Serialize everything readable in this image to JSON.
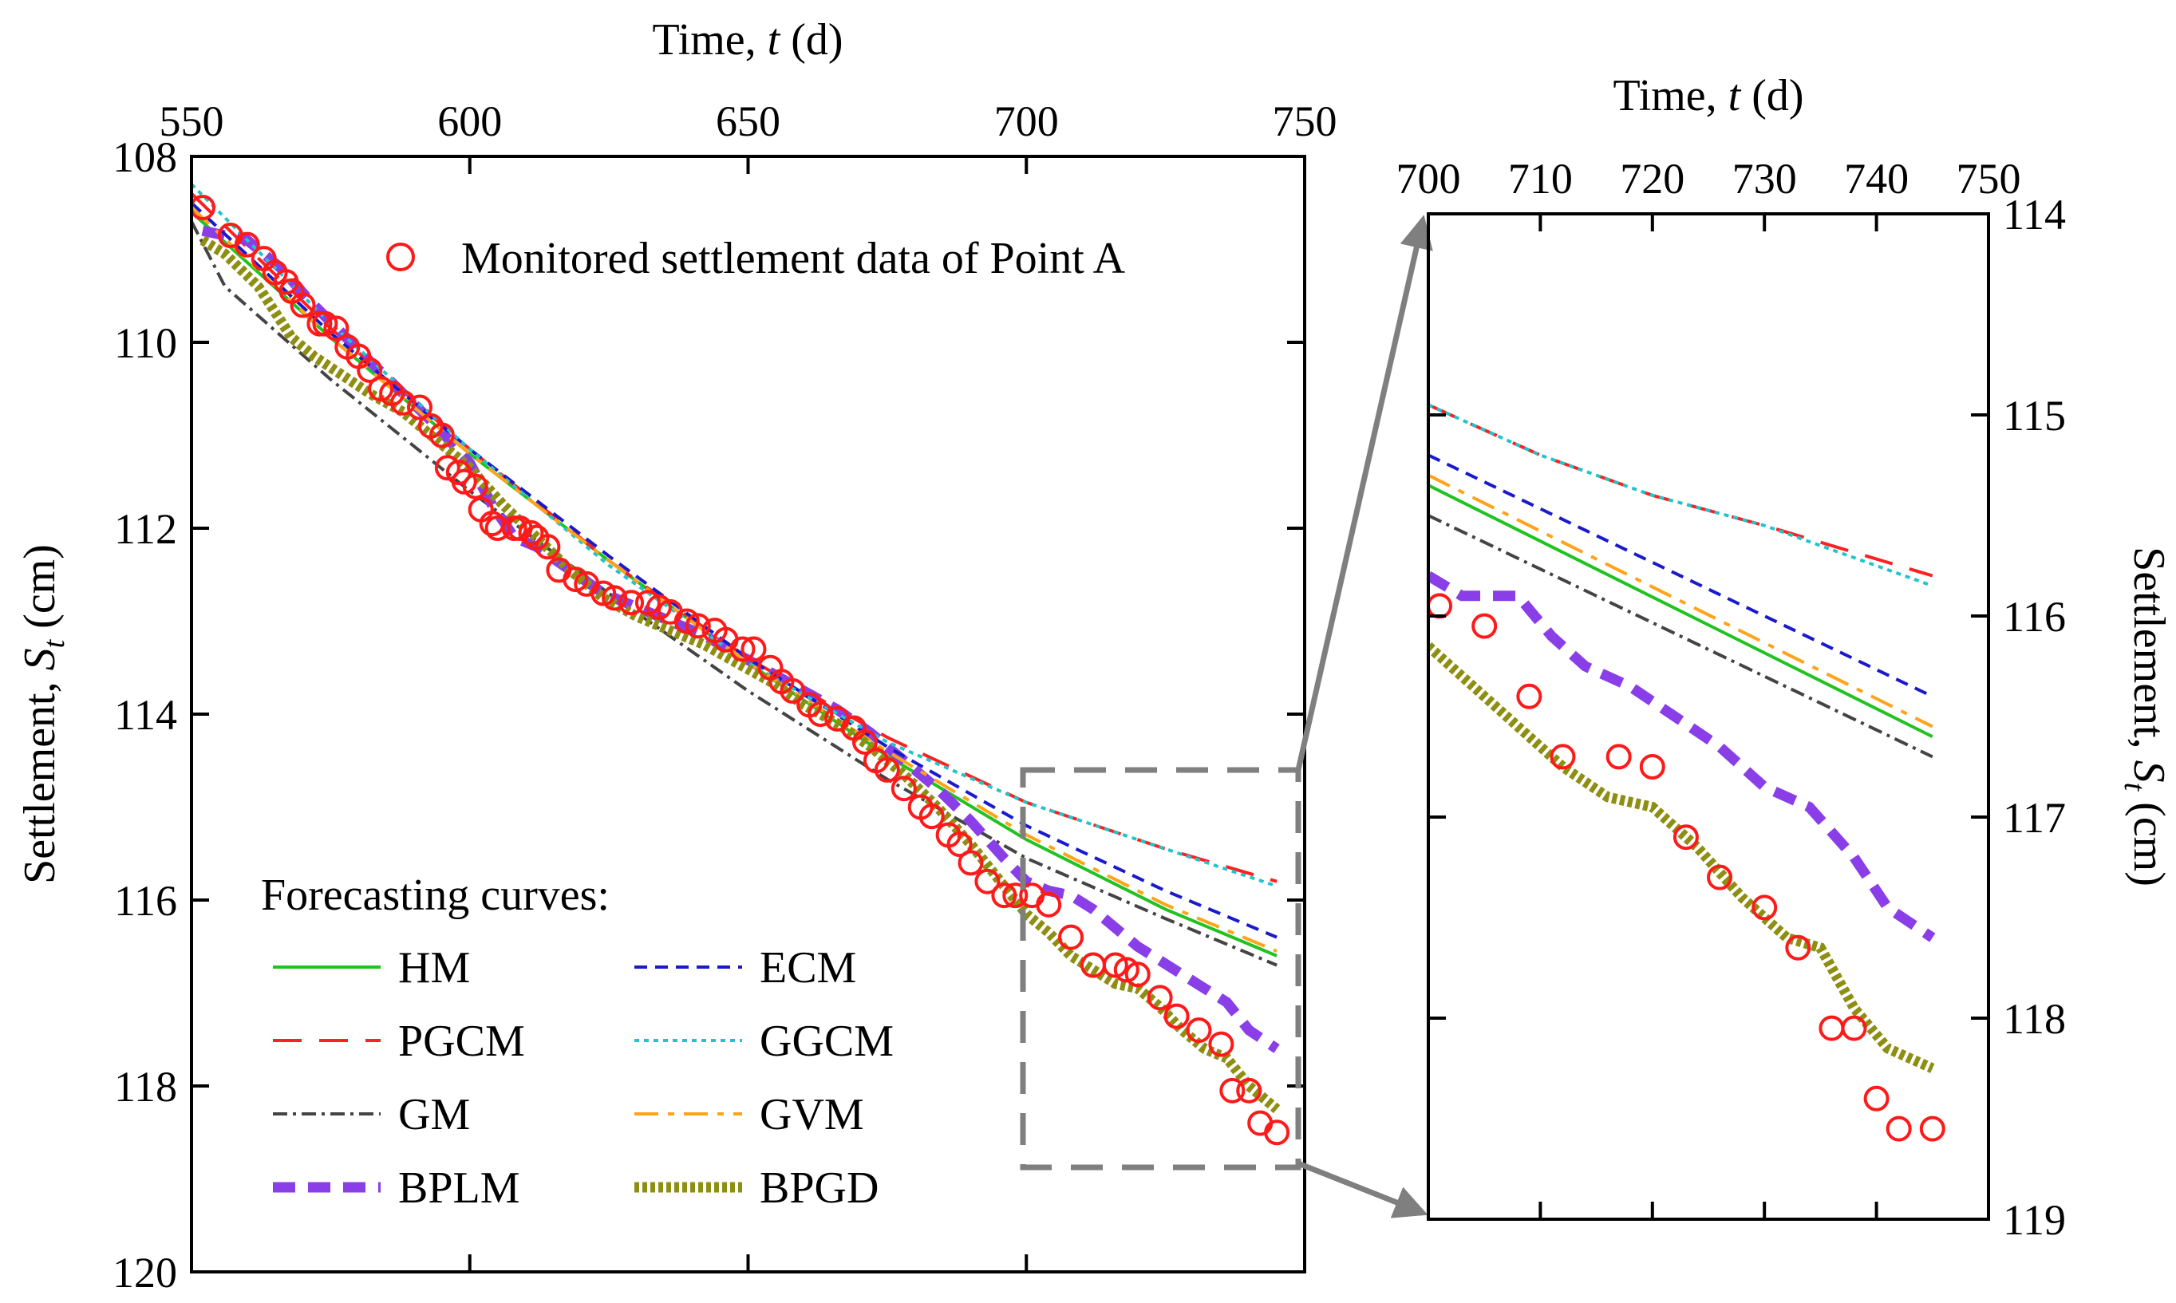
{
  "colors": {
    "observed": "#ff1a1a",
    "HM": "#22c222",
    "PGCM": "#ff2020",
    "GM": "#444444",
    "BPLM": "#8a3ee8",
    "ECM": "#1a1acc",
    "GGCM": "#22c4cc",
    "GVM": "#ffa319",
    "BPGD": "#8e8e12",
    "zoom_box": "#7f7f7f"
  },
  "chart_data": [
    {
      "type": "line",
      "panel": "main",
      "xlabel_main": "Time, ",
      "xlabel_var": "t",
      "xlabel_unit": " (d)",
      "ylabel_main": "Settlement, ",
      "ylabel_var": "S",
      "ylabel_sub": "t",
      "ylabel_unit": " (cm)",
      "xlim": [
        550,
        750
      ],
      "ylim": [
        108,
        120
      ],
      "y_inverted": true,
      "xticks": [
        550,
        600,
        650,
        700,
        750
      ],
      "yticks": [
        108,
        110,
        112,
        114,
        116,
        118,
        120
      ],
      "observed_legend": "Monitored settlement data of Point A",
      "forecast_title": "Forecasting curves:",
      "observed": {
        "name": "Monitored settlement data of Point A",
        "x": [
          552,
          557,
          560,
          563,
          565,
          567,
          568,
          570,
          573,
          574,
          576,
          578,
          580,
          582,
          584,
          586,
          588,
          591,
          593,
          595,
          596,
          598,
          599,
          601,
          602,
          604,
          605,
          608,
          609,
          611,
          612,
          614,
          616,
          619,
          621,
          624,
          626,
          629,
          632,
          634,
          636,
          639,
          641,
          644,
          646,
          649,
          651,
          654,
          656,
          658,
          661,
          663,
          666,
          669,
          671,
          673,
          675,
          678,
          681,
          683,
          686,
          688,
          690,
          693,
          696,
          698,
          701,
          704,
          708,
          712,
          716,
          718,
          720,
          724,
          727,
          731,
          735,
          737,
          740,
          742,
          745
        ],
        "y": [
          108.55,
          108.85,
          108.95,
          109.1,
          109.25,
          109.35,
          109.45,
          109.6,
          109.8,
          109.8,
          109.85,
          110.05,
          110.15,
          110.3,
          110.5,
          110.55,
          110.65,
          110.7,
          110.9,
          111.0,
          111.35,
          111.4,
          111.5,
          111.55,
          111.8,
          111.95,
          112.0,
          112.0,
          112.0,
          112.05,
          112.1,
          112.2,
          112.45,
          112.55,
          112.6,
          112.7,
          112.75,
          112.8,
          112.8,
          112.85,
          112.9,
          113.0,
          113.05,
          113.1,
          113.2,
          113.3,
          113.3,
          113.5,
          113.65,
          113.75,
          113.9,
          114.0,
          114.05,
          114.15,
          114.3,
          114.5,
          114.6,
          114.8,
          115.0,
          115.1,
          115.3,
          115.4,
          115.6,
          115.8,
          115.95,
          115.95,
          115.95,
          116.05,
          116.4,
          116.7,
          116.7,
          116.75,
          116.8,
          117.05,
          117.25,
          117.4,
          117.55,
          118.05,
          118.05,
          118.4,
          118.5
        ]
      },
      "series": [
        {
          "name": "HM",
          "x": [
            550,
            575,
            600,
            625,
            650,
            675,
            700,
            725,
            745
          ],
          "y": [
            108.6,
            109.95,
            111.2,
            112.35,
            113.45,
            114.45,
            115.35,
            116.1,
            116.6
          ]
        },
        {
          "name": "PGCM",
          "x": [
            550,
            575,
            600,
            625,
            650,
            675,
            700,
            725,
            745
          ],
          "y": [
            108.4,
            109.85,
            111.15,
            112.35,
            113.4,
            114.25,
            114.95,
            115.45,
            115.8
          ]
        },
        {
          "name": "GM",
          "x": [
            550,
            556,
            575,
            600,
            625,
            650,
            675,
            700,
            725,
            745
          ],
          "y": [
            108.7,
            109.4,
            110.4,
            111.6,
            112.7,
            113.75,
            114.7,
            115.55,
            116.2,
            116.7
          ]
        },
        {
          "name": "BPLM",
          "x": [
            552,
            560,
            566,
            572,
            577,
            582,
            588,
            594,
            600,
            604,
            608,
            612,
            618,
            624,
            630,
            636,
            642,
            648,
            654,
            660,
            666,
            672,
            678,
            684,
            690,
            696,
            700,
            704,
            708,
            712,
            716,
            720,
            724,
            728,
            732,
            736,
            740,
            745
          ],
          "y": [
            108.8,
            108.9,
            109.2,
            109.6,
            109.9,
            110.2,
            110.55,
            110.9,
            111.3,
            111.75,
            112.1,
            112.2,
            112.45,
            112.7,
            112.85,
            113.0,
            113.15,
            113.35,
            113.55,
            113.75,
            113.95,
            114.2,
            114.5,
            114.8,
            115.15,
            115.55,
            115.8,
            115.9,
            115.95,
            116.1,
            116.3,
            116.5,
            116.65,
            116.8,
            116.95,
            117.1,
            117.4,
            117.6
          ]
        },
        {
          "name": "ECM",
          "x": [
            550,
            575,
            600,
            625,
            650,
            675,
            700,
            725,
            745
          ],
          "y": [
            108.5,
            109.9,
            111.15,
            112.3,
            113.4,
            114.35,
            115.2,
            115.9,
            116.4
          ]
        },
        {
          "name": "GGCM",
          "x": [
            550,
            575,
            600,
            625,
            650,
            675,
            700,
            725,
            745
          ],
          "y": [
            108.3,
            109.8,
            111.15,
            112.4,
            113.45,
            114.3,
            114.95,
            115.45,
            115.85
          ]
        },
        {
          "name": "GVM",
          "x": [
            550,
            575,
            600,
            625,
            650,
            675,
            700,
            725,
            745
          ],
          "y": [
            108.55,
            109.95,
            111.2,
            112.35,
            113.45,
            114.4,
            115.3,
            116.05,
            116.55
          ]
        },
        {
          "name": "BPGD",
          "x": [
            552,
            556,
            562,
            568,
            572,
            577,
            582,
            588,
            594,
            600,
            606,
            612,
            618,
            624,
            630,
            636,
            642,
            648,
            654,
            660,
            666,
            672,
            678,
            684,
            690,
            696,
            700,
            704,
            708,
            712,
            716,
            720,
            724,
            728,
            732,
            736,
            740,
            745
          ],
          "y": [
            108.9,
            109.05,
            109.4,
            109.95,
            110.15,
            110.35,
            110.55,
            110.75,
            111.05,
            111.35,
            111.75,
            112.1,
            112.45,
            112.75,
            112.95,
            113.1,
            113.25,
            113.45,
            113.65,
            113.9,
            114.1,
            114.35,
            114.65,
            115.0,
            115.4,
            115.85,
            116.15,
            116.35,
            116.6,
            116.75,
            116.9,
            116.95,
            117.15,
            117.4,
            117.6,
            117.7,
            118.0,
            118.25
          ]
        }
      ]
    },
    {
      "type": "line",
      "panel": "zoom",
      "xlabel_main": "Time, ",
      "xlabel_var": "t",
      "xlabel_unit": " (d)",
      "ylabel_main": "Settlement, ",
      "ylabel_var": "S",
      "ylabel_sub": "t",
      "ylabel_unit": " (cm)",
      "xlim": [
        700,
        750
      ],
      "ylim": [
        114,
        119
      ],
      "y_inverted": true,
      "xticks": [
        700,
        710,
        720,
        730,
        740,
        750
      ],
      "yticks": [
        114,
        115,
        116,
        117,
        118,
        119
      ],
      "observed": {
        "name": "Monitored settlement data of Point A",
        "x": [
          701,
          705,
          709,
          712,
          717,
          720,
          723,
          726,
          730,
          733,
          736,
          738,
          740,
          742,
          745
        ],
        "y": [
          115.95,
          116.05,
          116.4,
          116.7,
          116.7,
          116.75,
          117.1,
          117.3,
          117.45,
          117.65,
          118.05,
          118.05,
          118.4,
          118.55,
          118.55
        ]
      },
      "series": [
        {
          "name": "HM",
          "x": [
            700,
            745
          ],
          "y": [
            115.35,
            116.6
          ]
        },
        {
          "name": "PGCM",
          "x": [
            700,
            710,
            720,
            730,
            745
          ],
          "y": [
            114.95,
            115.2,
            115.4,
            115.55,
            115.8
          ]
        },
        {
          "name": "GM",
          "x": [
            700,
            745
          ],
          "y": [
            115.5,
            116.7
          ]
        },
        {
          "name": "BPLM",
          "x": [
            700,
            703,
            708,
            711,
            714,
            718,
            722,
            726,
            730,
            734,
            738,
            741,
            745
          ],
          "y": [
            115.8,
            115.9,
            115.9,
            116.1,
            116.25,
            116.35,
            116.5,
            116.65,
            116.85,
            116.95,
            117.2,
            117.45,
            117.6
          ]
        },
        {
          "name": "ECM",
          "x": [
            700,
            745
          ],
          "y": [
            115.2,
            116.4
          ]
        },
        {
          "name": "GGCM",
          "x": [
            700,
            710,
            720,
            730,
            745
          ],
          "y": [
            114.95,
            115.2,
            115.4,
            115.55,
            115.85
          ]
        },
        {
          "name": "GVM",
          "x": [
            700,
            745
          ],
          "y": [
            115.3,
            116.55
          ]
        },
        {
          "name": "BPGD",
          "x": [
            700,
            704,
            708,
            712,
            716,
            720,
            724,
            728,
            732,
            735,
            738,
            741,
            745
          ],
          "y": [
            116.15,
            116.35,
            116.55,
            116.75,
            116.9,
            116.95,
            117.15,
            117.4,
            117.6,
            117.65,
            117.95,
            118.15,
            118.25
          ]
        }
      ]
    }
  ]
}
